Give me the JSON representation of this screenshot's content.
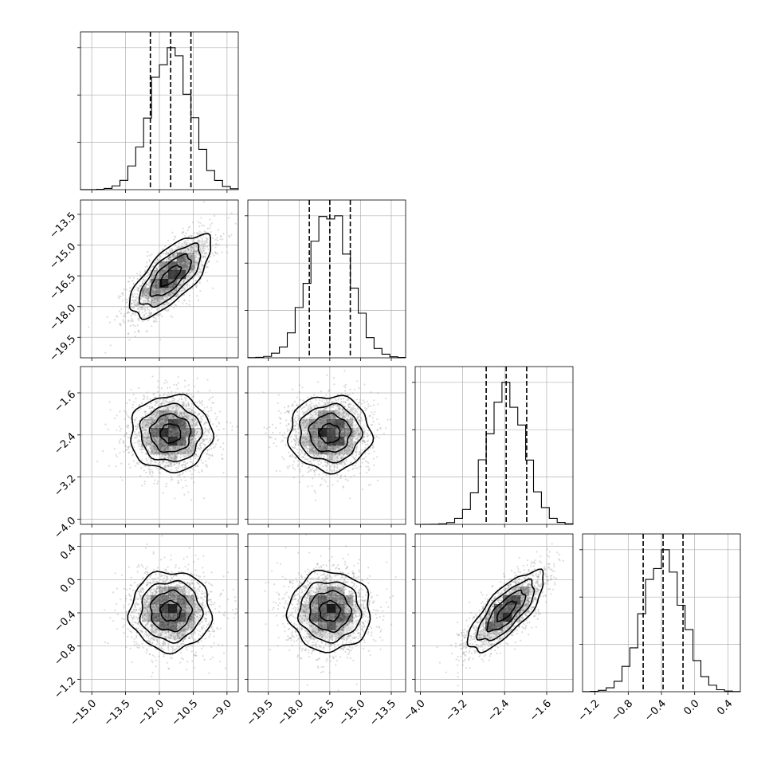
{
  "chart_data": {
    "type": "corner",
    "grid": true,
    "parameters": [
      {
        "range": [
          -15.5,
          -8.5
        ],
        "ticks": [
          -15.0,
          -13.5,
          -12.0,
          -10.5,
          -9.0
        ],
        "tick_labels": [
          "−15.0",
          "−13.5",
          "−12.0",
          "−10.5",
          "−9.0"
        ],
        "mean": -11.5,
        "sd": 0.9,
        "quantiles": [
          -12.4,
          -11.5,
          -10.6
        ]
      },
      {
        "range": [
          -20.5,
          -12.8
        ],
        "ticks": [
          -19.5,
          -18.0,
          -16.5,
          -15.0,
          -13.5
        ],
        "tick_labels": [
          "−19.5",
          "−18.0",
          "−16.5",
          "−15.0",
          "−13.5"
        ],
        "mean": -16.5,
        "sd": 1.0,
        "quantiles": [
          -17.5,
          -16.5,
          -15.5
        ]
      },
      {
        "range": [
          -4.1,
          -1.1
        ],
        "ticks": [
          -4.0,
          -3.2,
          -2.4,
          -1.6
        ],
        "tick_labels": [
          "−4.0",
          "−3.2",
          "−2.4",
          "−1.6"
        ],
        "mean": -2.37,
        "sd": 0.36,
        "quantiles": [
          -2.75,
          -2.37,
          -1.98
        ]
      },
      {
        "range": [
          -1.35,
          0.55
        ],
        "ticks": [
          -1.2,
          -0.8,
          -0.4,
          0.0,
          0.4
        ],
        "tick_labels": [
          "−1.2",
          "−0.8",
          "−0.4",
          "0.0",
          "0.4"
        ],
        "mean": -0.38,
        "sd": 0.24,
        "quantiles": [
          -0.62,
          -0.38,
          -0.14
        ]
      }
    ],
    "correlations": [
      {
        "i": 1,
        "j": 0,
        "rho": 0.7
      },
      {
        "i": 2,
        "j": 0,
        "rho": 0.0
      },
      {
        "i": 2,
        "j": 1,
        "rho": 0.0
      },
      {
        "i": 3,
        "j": 0,
        "rho": 0.0
      },
      {
        "i": 3,
        "j": 1,
        "rho": 0.0
      },
      {
        "i": 3,
        "j": 2,
        "rho": 0.75
      }
    ],
    "contour_levels_sigma": [
      0.5,
      1.0,
      1.5,
      2.0
    ],
    "histogram_bins": 20,
    "samples_shown": 6000,
    "colors": {
      "line": "#000000",
      "points": "#9a9a9a",
      "grid": "#b0b0b0",
      "density": "#000000"
    }
  }
}
